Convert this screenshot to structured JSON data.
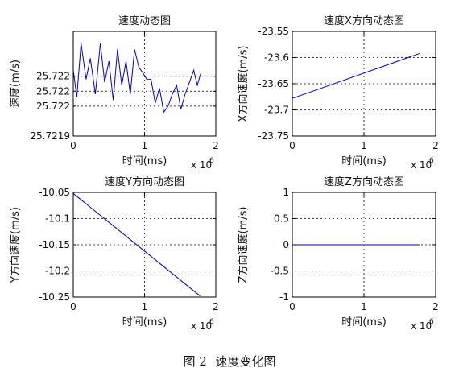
{
  "figure": {
    "number_label": "图 2",
    "caption": "速度变化图"
  },
  "chart_data": [
    {
      "type": "line",
      "title": "速度动态图",
      "xlabel": "时间(ms)",
      "ylabel": "速度(m/s)",
      "x_multiplier": "x 10",
      "x_exponent": "6",
      "xlim": [
        0,
        2
      ],
      "ylim": [
        25.7219,
        25.72225
      ],
      "xticks": [
        "0",
        "1",
        "2"
      ],
      "yticks": [
        "25.7219",
        "25.722",
        "25.722",
        "25.722"
      ],
      "ytick_values": [
        25.7219,
        25.722,
        25.72205,
        25.7221
      ],
      "grid": true,
      "color": "#0000cc",
      "x": [
        0,
        0.05,
        0.11,
        0.18,
        0.24,
        0.31,
        0.38,
        0.44,
        0.5,
        0.56,
        0.62,
        0.68,
        0.74,
        0.8,
        0.86,
        0.92,
        0.98,
        1.03,
        1.09,
        1.15,
        1.21,
        1.27,
        1.33,
        1.39,
        1.45,
        1.51,
        1.57,
        1.63,
        1.69,
        1.74,
        1.79
      ],
      "y": [
        25.72212,
        25.72203,
        25.72221,
        25.72209,
        25.72216,
        25.72204,
        25.72221,
        25.72208,
        25.72215,
        25.72202,
        25.72219,
        25.72207,
        25.72215,
        25.72204,
        25.72219,
        25.72213,
        25.72211,
        25.72209,
        25.72209,
        25.72201,
        25.72206,
        25.72198,
        25.722,
        25.72204,
        25.72207,
        25.72199,
        25.72204,
        25.72208,
        25.72212,
        25.72207,
        25.72211
      ]
    },
    {
      "type": "line",
      "title": "速度X方向动态图",
      "xlabel": "时间(ms)",
      "ylabel": "X方向速度(m/s)",
      "x_multiplier": "x 10",
      "x_exponent": "6",
      "xlim": [
        0,
        2
      ],
      "ylim": [
        -23.75,
        -23.55
      ],
      "xticks": [
        "0",
        "1",
        "2"
      ],
      "yticks": [
        "-23.75",
        "-23.7",
        "-23.65",
        "-23.6",
        "-23.55"
      ],
      "ytick_values": [
        -23.75,
        -23.7,
        -23.65,
        -23.6,
        -23.55
      ],
      "grid": true,
      "color": "#0000cc",
      "x": [
        0,
        1.78
      ],
      "y": [
        -23.678,
        -23.592
      ]
    },
    {
      "type": "line",
      "title": "速度Y方向动态图",
      "xlabel": "时间(ms)",
      "ylabel": "Y方向速度(m/s)",
      "x_multiplier": "x 10",
      "x_exponent": "6",
      "xlim": [
        0,
        2
      ],
      "ylim": [
        -10.25,
        -10.05
      ],
      "xticks": [
        "0",
        "1",
        "2"
      ],
      "yticks": [
        "-10.25",
        "-10.2",
        "-10.15",
        "-10.1",
        "-10.05"
      ],
      "ytick_values": [
        -10.25,
        -10.2,
        -10.15,
        -10.1,
        -10.05
      ],
      "grid": true,
      "color": "#0000cc",
      "x": [
        0,
        1.78
      ],
      "y": [
        -10.052,
        -10.248
      ]
    },
    {
      "type": "line",
      "title": "速度Z方向动态图",
      "xlabel": "时间(ms)",
      "ylabel": "Z方向速度(m/s)",
      "x_multiplier": "x 10",
      "x_exponent": "6",
      "xlim": [
        0,
        2
      ],
      "ylim": [
        -1,
        1
      ],
      "xticks": [
        "0",
        "1",
        "2"
      ],
      "yticks": [
        "-1",
        "-0.5",
        "0",
        "0.5",
        "1"
      ],
      "ytick_values": [
        -1,
        -0.5,
        0,
        0.5,
        1
      ],
      "grid": true,
      "color": "#0000cc",
      "x": [
        0,
        1.78
      ],
      "y": [
        0,
        0
      ]
    }
  ]
}
